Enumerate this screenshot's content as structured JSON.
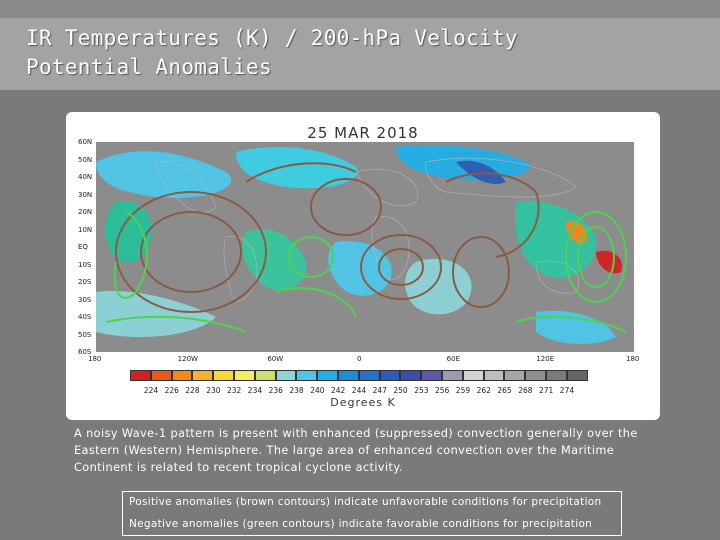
{
  "title": {
    "line1": "IR Temperatures (K) / 200-hPa Velocity",
    "line2": "Potential Anomalies"
  },
  "map": {
    "date": "25 MAR 2018",
    "lat_labels": [
      "60N",
      "50N",
      "40N",
      "30N",
      "20N",
      "10N",
      "EQ",
      "10S",
      "20S",
      "30S",
      "40S",
      "50S",
      "60S"
    ],
    "lon_labels": [
      "180",
      "120W",
      "60W",
      "0",
      "60E",
      "120E",
      "180"
    ],
    "colorbar_ticks": [
      "224",
      "226",
      "228",
      "230",
      "232",
      "234",
      "236",
      "238",
      "240",
      "242",
      "244",
      "247",
      "250",
      "253",
      "256",
      "259",
      "262",
      "265",
      "268",
      "271",
      "274"
    ],
    "colorbar_colors": [
      "#d42020",
      "#e85a1a",
      "#f08a1e",
      "#f5b22a",
      "#f7d838",
      "#f2ee60",
      "#c8e070",
      "#8ed4d8",
      "#4ec6ea",
      "#22aee6",
      "#1a8ed8",
      "#2272c8",
      "#2d5cb8",
      "#3c4ca8",
      "#5a5aa8",
      "#9c9cb0",
      "#d4d4d4",
      "#bdbdbd",
      "#a6a6a6",
      "#8f8f8f",
      "#7a7a7a",
      "#656565"
    ],
    "units": "Degrees K",
    "positive_contour_color": "#8b5a44",
    "negative_contour_color": "#4fd24f"
  },
  "description": "A noisy Wave-1 pattern is present with enhanced (suppressed) convection generally over the Eastern (Western) Hemisphere. The large area of enhanced convection over the Maritime Continent is related to recent tropical cyclone activity.",
  "legend": {
    "positive": "Positive anomalies (brown contours) indicate unfavorable conditions for precipitation",
    "negative": "Negative anomalies (green contours) indicate favorable conditions for precipitation"
  }
}
